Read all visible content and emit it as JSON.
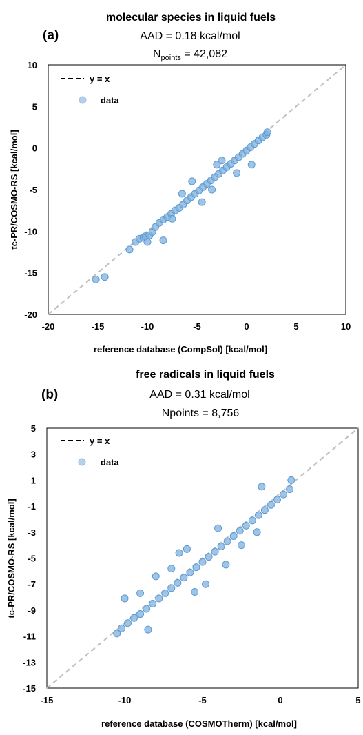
{
  "chart_data": [
    {
      "type": "scatter",
      "panel_label": "(a)",
      "title": "molecular species in liquid fuels",
      "aad_text": "AAD = 0.18 kcal/mol",
      "npoints_prefix": "N",
      "npoints_sub": "points",
      "npoints_suffix": " = 42,082",
      "xlabel": "reference database (CompSol) [kcal/mol]",
      "ylabel": "tc-PR/COSMO-RS [kcal/mol]",
      "xlim": [
        -20,
        10
      ],
      "ylim": [
        -20,
        10
      ],
      "xticks": [
        -20,
        -15,
        -10,
        -5,
        0,
        5,
        10
      ],
      "yticks": [
        -20,
        -15,
        -10,
        -5,
        0,
        5,
        10
      ],
      "grid": false,
      "legend_position": "top-left",
      "legend": [
        {
          "label": "y = x",
          "kind": "dashed-line"
        },
        {
          "label": "data",
          "kind": "marker"
        }
      ],
      "series": [
        {
          "name": "data",
          "points": [
            [
              -15.2,
              -15.8
            ],
            [
              -14.3,
              -15.5
            ],
            [
              -11.8,
              -12.2
            ],
            [
              -11.2,
              -11.3
            ],
            [
              -10.8,
              -10.9
            ],
            [
              -10.4,
              -10.8
            ],
            [
              -10.2,
              -10.6
            ],
            [
              -10.0,
              -11.3
            ],
            [
              -9.8,
              -10.5
            ],
            [
              -9.5,
              -10.1
            ],
            [
              -8.4,
              -11.1
            ],
            [
              -9.2,
              -9.5
            ],
            [
              -8.8,
              -9.0
            ],
            [
              -8.4,
              -8.6
            ],
            [
              -8.0,
              -8.3
            ],
            [
              -7.6,
              -7.9
            ],
            [
              -7.2,
              -7.5
            ],
            [
              -6.8,
              -7.2
            ],
            [
              -6.4,
              -6.8
            ],
            [
              -6.0,
              -6.3
            ],
            [
              -5.6,
              -5.9
            ],
            [
              -5.2,
              -5.5
            ],
            [
              -4.8,
              -5.1
            ],
            [
              -4.4,
              -4.7
            ],
            [
              -4.0,
              -4.3
            ],
            [
              -3.6,
              -3.9
            ],
            [
              -3.2,
              -3.5
            ],
            [
              -2.8,
              -3.1
            ],
            [
              -2.4,
              -2.7
            ],
            [
              -2.0,
              -2.3
            ],
            [
              -1.6,
              -1.9
            ],
            [
              -1.2,
              -1.5
            ],
            [
              -0.8,
              -1.1
            ],
            [
              -0.4,
              -0.7
            ],
            [
              0.0,
              -0.3
            ],
            [
              0.4,
              0.1
            ],
            [
              0.8,
              0.5
            ],
            [
              1.2,
              0.9
            ],
            [
              1.6,
              1.3
            ],
            [
              2.0,
              1.6
            ],
            [
              2.1,
              1.9
            ],
            [
              -3.0,
              -2.0
            ],
            [
              -2.5,
              -1.5
            ],
            [
              -4.5,
              -6.5
            ],
            [
              -6.5,
              -5.5
            ],
            [
              -7.5,
              -8.5
            ],
            [
              -1.0,
              -3.0
            ],
            [
              0.5,
              -2.0
            ],
            [
              -5.5,
              -4.0
            ],
            [
              -3.5,
              -5.0
            ]
          ]
        },
        {
          "name": "y = x",
          "points": [
            [
              -20,
              -20
            ],
            [
              10,
              10
            ]
          ]
        }
      ]
    },
    {
      "type": "scatter",
      "panel_label": "(b)",
      "title": "free radicals in liquid fuels",
      "aad_text": "AAD = 0.31 kcal/mol",
      "npoints_text": "Npoints = 8,756",
      "xlabel": "reference database (COSMOTherm) [kcal/mol]",
      "ylabel": "tc-PR/COSMO-RS [kcal/mol]",
      "xlim": [
        -15,
        5
      ],
      "ylim": [
        -15,
        5
      ],
      "xticks": [
        -15,
        -10,
        -5,
        0,
        5
      ],
      "yticks": [
        -15,
        -13,
        -11,
        -9,
        -7,
        -5,
        -3,
        -1,
        1,
        3,
        5
      ],
      "grid": false,
      "legend_position": "top-left",
      "legend": [
        {
          "label": "y = x",
          "kind": "dashed-line"
        },
        {
          "label": "data",
          "kind": "marker"
        }
      ],
      "series": [
        {
          "name": "data",
          "points": [
            [
              -10.5,
              -10.8
            ],
            [
              -10.2,
              -10.4
            ],
            [
              -9.8,
              -10.0
            ],
            [
              -9.4,
              -9.6
            ],
            [
              -9.0,
              -9.3
            ],
            [
              -10.0,
              -8.1
            ],
            [
              -8.6,
              -8.9
            ],
            [
              -8.2,
              -8.5
            ],
            [
              -7.8,
              -8.1
            ],
            [
              -7.4,
              -7.7
            ],
            [
              -7.0,
              -7.3
            ],
            [
              -6.6,
              -6.9
            ],
            [
              -6.2,
              -6.5
            ],
            [
              -5.8,
              -6.1
            ],
            [
              -5.4,
              -5.7
            ],
            [
              -5.0,
              -5.3
            ],
            [
              -4.6,
              -4.9
            ],
            [
              -4.2,
              -4.5
            ],
            [
              -3.8,
              -4.1
            ],
            [
              -3.4,
              -3.7
            ],
            [
              -3.0,
              -3.3
            ],
            [
              -2.6,
              -2.9
            ],
            [
              -2.2,
              -2.5
            ],
            [
              -1.8,
              -2.1
            ],
            [
              -1.4,
              -1.7
            ],
            [
              -1.0,
              -1.3
            ],
            [
              -0.6,
              -0.9
            ],
            [
              -0.2,
              -0.5
            ],
            [
              0.2,
              -0.1
            ],
            [
              0.6,
              0.3
            ],
            [
              0.7,
              1.0
            ],
            [
              -1.2,
              0.5
            ],
            [
              -6.5,
              -4.6
            ],
            [
              -6.0,
              -4.3
            ],
            [
              -8.0,
              -6.4
            ],
            [
              -7.0,
              -5.8
            ],
            [
              -4.0,
              -2.7
            ],
            [
              -4.8,
              -7.0
            ],
            [
              -3.5,
              -5.5
            ],
            [
              -5.5,
              -7.6
            ],
            [
              -2.5,
              -4.0
            ],
            [
              -8.5,
              -10.5
            ],
            [
              -1.5,
              -3.0
            ],
            [
              -9.0,
              -7.7
            ]
          ]
        },
        {
          "name": "y = x",
          "points": [
            [
              -15,
              -15
            ],
            [
              5,
              5
            ]
          ]
        }
      ]
    }
  ],
  "colors": {
    "marker_fill": "#7fb0dc",
    "marker_stroke": "#5b9bd5",
    "identity_line": "#bfbfbf",
    "legend_line": "#000000",
    "axis": "#000000"
  }
}
